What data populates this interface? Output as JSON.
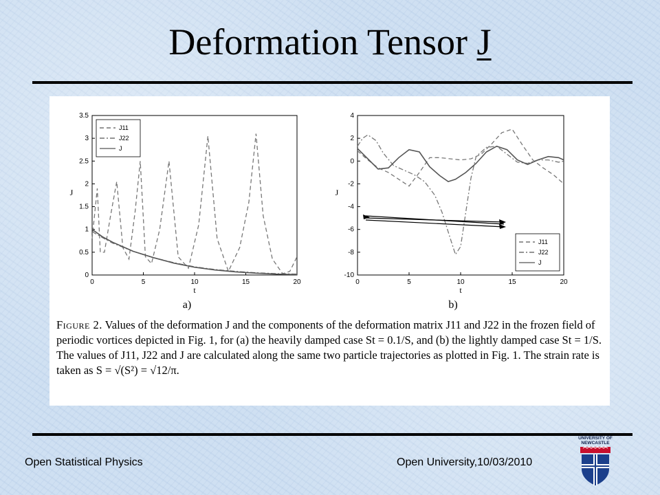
{
  "slide": {
    "title_text": "Deformation Tensor ",
    "title_symbol": "J",
    "footer_left": "Open Statistical Physics",
    "footer_right": "Open University,10/03/2010",
    "logo_line1": "UNIVERSITY OF",
    "logo_line2": "NEWCASTLE"
  },
  "figure": {
    "panel_a_label": "a)",
    "panel_b_label": "b)",
    "caption_fig": "Figure 2.",
    "caption_body": " Values of the deformation J and the components of the deformation matrix J11 and J22 in the frozen field of periodic vortices depicted in Fig. 1, for (a) the heavily damped case St = 0.1/S, and (b) the lightly damped case St = 1/S. The values of J11, J22 and J are calculated along the same two particle trajectories as plotted in Fig. 1. The strain rate is taken as S = √(S²) = √12/π."
  },
  "chart_data": [
    {
      "type": "line",
      "xlabel": "t",
      "ylabel": "J",
      "xlim": [
        0,
        20
      ],
      "ylim": [
        0,
        3.5
      ],
      "xticks": [
        0,
        5,
        10,
        15,
        20
      ],
      "yticks": [
        0,
        0.5,
        1,
        1.5,
        2,
        2.5,
        3,
        3.5
      ],
      "legend_position": "top-left",
      "series": [
        {
          "name": "J11",
          "style": "dashed",
          "x": [
            0,
            0.5,
            0.8,
            1.2,
            1.8,
            2.4,
            3.0,
            3.6,
            4.2,
            4.7,
            5.2,
            5.8,
            6.6,
            7.5,
            8.4,
            9.4,
            10.4,
            11.3,
            12.2,
            13.3,
            14.4,
            15.3,
            16.0,
            16.7,
            17.6,
            18.6,
            19.3,
            20
          ],
          "y": [
            0.8,
            1.9,
            0.5,
            0.5,
            1.3,
            2.05,
            0.6,
            0.35,
            1.4,
            2.5,
            0.4,
            0.25,
            1.0,
            2.5,
            0.4,
            0.15,
            1.1,
            3.05,
            0.8,
            0.08,
            0.6,
            1.6,
            3.1,
            1.3,
            0.35,
            0.03,
            0.08,
            0.4
          ]
        },
        {
          "name": "J22",
          "style": "dashdot",
          "x": [
            0,
            1,
            2,
            4,
            6,
            8,
            10,
            12,
            14,
            16,
            18,
            20
          ],
          "y": [
            0.95,
            0.82,
            0.7,
            0.52,
            0.38,
            0.27,
            0.18,
            0.12,
            0.08,
            0.05,
            0.03,
            0.02
          ]
        },
        {
          "name": "J",
          "style": "solid",
          "x": [
            0,
            1,
            2,
            3,
            4,
            6,
            8,
            10,
            12,
            14,
            16,
            18,
            20
          ],
          "y": [
            1.0,
            0.84,
            0.72,
            0.62,
            0.52,
            0.38,
            0.26,
            0.17,
            0.11,
            0.07,
            0.04,
            0.02,
            0.01
          ]
        }
      ]
    },
    {
      "type": "line",
      "xlabel": "t",
      "ylabel": "J",
      "xlim": [
        0,
        20
      ],
      "ylim": [
        -10,
        4
      ],
      "xticks": [
        0,
        5,
        10,
        15,
        20
      ],
      "yticks": [
        -10,
        -8,
        -6,
        -4,
        -2,
        0,
        2,
        4
      ],
      "legend_position": "bottom-right",
      "series": [
        {
          "name": "J11",
          "style": "dashed",
          "x": [
            0,
            1,
            2,
            3,
            4,
            5,
            6,
            7,
            8,
            9,
            10,
            11,
            12,
            13,
            14,
            15,
            16,
            17,
            18,
            19,
            20
          ],
          "y": [
            0.9,
            0.1,
            -0.6,
            -1.0,
            -1.6,
            -2.2,
            -1.0,
            0.3,
            0.3,
            0.2,
            0.1,
            0.2,
            0.6,
            1.5,
            2.5,
            2.8,
            1.4,
            0.1,
            -0.6,
            -1.2,
            -2.0
          ]
        },
        {
          "name": "J22",
          "style": "dashdot",
          "x": [
            0,
            0.5,
            1,
            1.8,
            2.5,
            3.5,
            4.5,
            5.5,
            6.5,
            7.5,
            8.2,
            9.0,
            9.5,
            10,
            10.5,
            11,
            11.5,
            12.5,
            13.5,
            14.5,
            15.5,
            16.5,
            17.5,
            18.5,
            19.5,
            20
          ],
          "y": [
            1.3,
            2.0,
            2.3,
            1.8,
            0.7,
            -0.4,
            -0.8,
            -1.2,
            -1.8,
            -3.0,
            -4.5,
            -6.8,
            -8.2,
            -7.5,
            -4.5,
            -1.5,
            0.4,
            1.2,
            1.3,
            0.6,
            -0.1,
            -0.2,
            0.1,
            0.1,
            -0.1,
            0.0
          ]
        },
        {
          "name": "J",
          "style": "solid",
          "x": [
            0,
            1,
            2,
            3,
            4,
            5,
            6,
            7,
            8,
            8.8,
            9.5,
            10.5,
            11.5,
            12.5,
            13.5,
            14.5,
            15.5,
            16.5,
            17.5,
            18.5,
            19.5,
            20
          ],
          "y": [
            1.1,
            0.2,
            -0.7,
            -0.6,
            0.3,
            1.0,
            0.8,
            -0.5,
            -1.3,
            -1.8,
            -1.6,
            -1.0,
            -0.2,
            0.8,
            1.3,
            1.0,
            0.1,
            -0.3,
            0.1,
            0.4,
            0.3,
            0.1
          ]
        }
      ]
    }
  ]
}
